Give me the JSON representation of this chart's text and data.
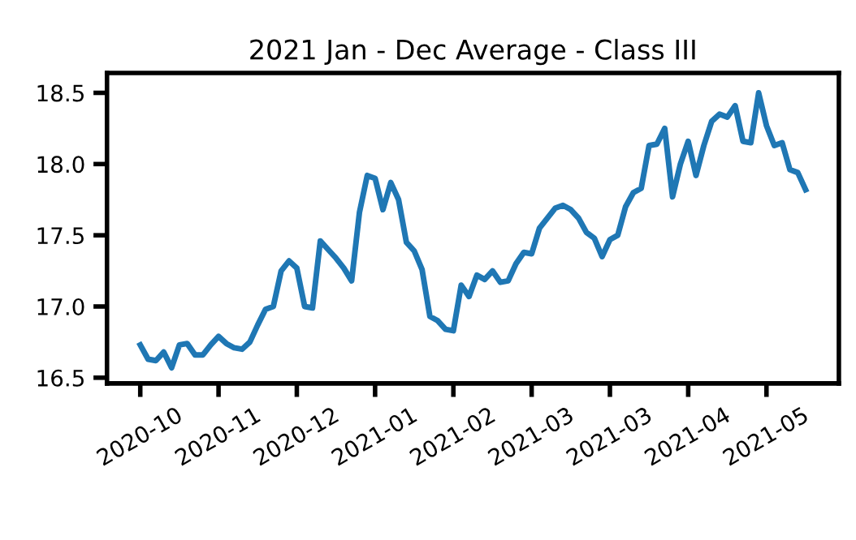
{
  "chart_data": {
    "type": "line",
    "title": "2021 Jan - Dec Average - Class III",
    "categories": [
      "2020-10",
      null,
      null,
      null,
      null,
      null,
      null,
      null,
      null,
      null,
      "2020-11",
      null,
      null,
      null,
      null,
      null,
      null,
      null,
      null,
      null,
      "2020-12",
      null,
      null,
      null,
      null,
      null,
      null,
      null,
      null,
      null,
      "2021-01",
      null,
      null,
      null,
      null,
      null,
      null,
      null,
      null,
      null,
      "2021-02",
      null,
      null,
      null,
      null,
      null,
      null,
      null,
      null,
      null,
      "2021-03",
      null,
      null,
      null,
      null,
      null,
      null,
      null,
      null,
      null,
      "2021-03",
      null,
      null,
      null,
      null,
      null,
      null,
      null,
      null,
      null,
      "2021-04",
      null,
      null,
      null,
      null,
      null,
      null,
      null,
      null,
      null,
      "2021-05",
      null,
      null,
      null,
      null,
      null
    ],
    "series": [
      {
        "color": "#1f77b4",
        "values": [
          16.73,
          16.63,
          16.62,
          16.68,
          16.57,
          16.73,
          16.74,
          16.66,
          16.66,
          16.73,
          16.79,
          16.74,
          16.71,
          16.7,
          16.75,
          16.87,
          16.98,
          17.0,
          17.25,
          17.32,
          17.27,
          17.0,
          16.99,
          17.46,
          17.4,
          17.34,
          17.27,
          17.18,
          17.66,
          17.92,
          17.9,
          17.68,
          17.87,
          17.75,
          17.45,
          17.39,
          17.26,
          16.93,
          16.9,
          16.84,
          16.83,
          17.15,
          17.07,
          17.22,
          17.19,
          17.25,
          17.17,
          17.18,
          17.3,
          17.38,
          17.37,
          17.55,
          17.62,
          17.69,
          17.71,
          17.68,
          17.62,
          17.52,
          17.48,
          17.35,
          17.47,
          17.5,
          17.7,
          17.8,
          17.83,
          18.13,
          18.14,
          18.25,
          17.77,
          18.0,
          18.16,
          17.92,
          18.13,
          18.3,
          18.35,
          18.33,
          18.41,
          18.16,
          18.15,
          18.5,
          18.27,
          18.13,
          18.15,
          17.96,
          17.94,
          17.82
        ]
      }
    ],
    "ylim": [
      16.46,
      18.64
    ],
    "yticks": [
      {
        "value": 16.5,
        "label": "16.5"
      },
      {
        "value": 17.0,
        "label": "17.0"
      },
      {
        "value": 17.5,
        "label": "17.5"
      },
      {
        "value": 18.0,
        "label": "18.0"
      },
      {
        "value": 18.5,
        "label": "18.5"
      }
    ],
    "line_style": "solid",
    "marker": "none"
  }
}
